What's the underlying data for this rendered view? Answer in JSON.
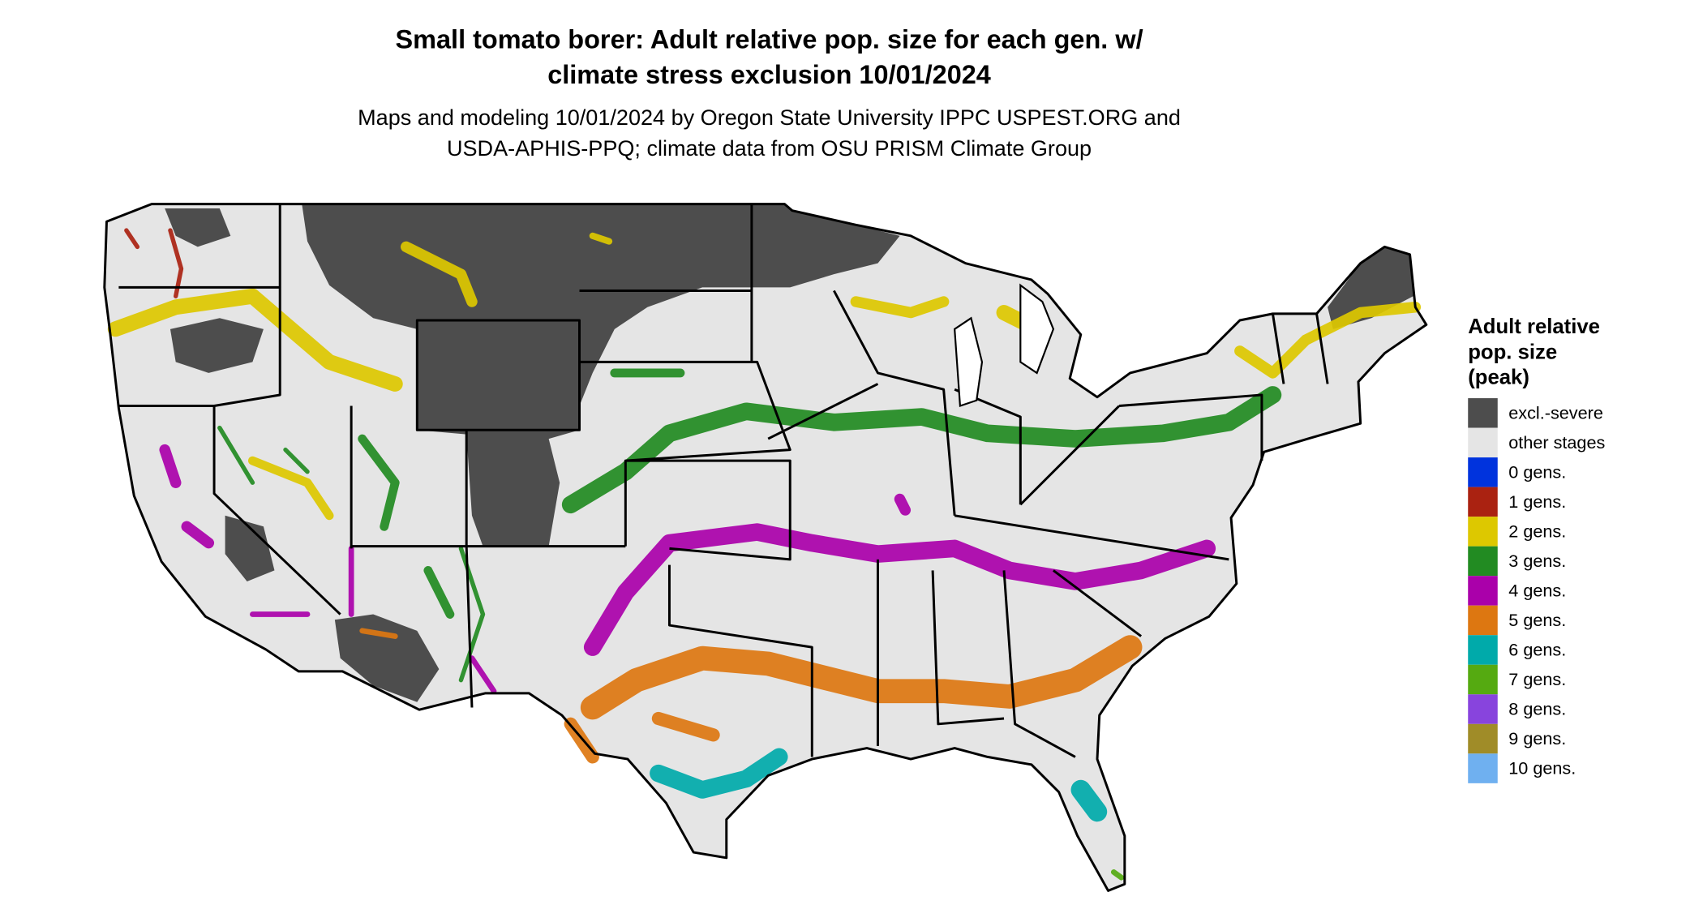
{
  "title": [
    "Small tomato borer: Adult relative pop. size for each gen. w/",
    "climate stress exclusion 10/01/2024"
  ],
  "subtitle": [
    "Maps and modeling 10/01/2024 by Oregon State University IPPC USPEST.ORG and",
    "USDA-APHIS-PPQ; climate data from OSU PRISM Climate Group"
  ],
  "legend": {
    "title": [
      "Adult relative",
      "pop. size",
      "(peak)"
    ],
    "items": [
      {
        "label": "excl.-severe",
        "color": "#4d4d4d"
      },
      {
        "label": "other stages",
        "color": "#e5e5e5"
      },
      {
        "label": "0 gens.",
        "color": "#0033dd"
      },
      {
        "label": "1 gens.",
        "color": "#aa2211"
      },
      {
        "label": "2 gens.",
        "color": "#ddc800"
      },
      {
        "label": "3 gens.",
        "color": "#228b22"
      },
      {
        "label": "4 gens.",
        "color": "#aa00aa"
      },
      {
        "label": "5 gens.",
        "color": "#dd7711"
      },
      {
        "label": "6 gens.",
        "color": "#00aaaa"
      },
      {
        "label": "7 gens.",
        "color": "#55aa11"
      },
      {
        "label": "8 gens.",
        "color": "#8844dd"
      },
      {
        "label": "9 gens.",
        "color": "#a08c28"
      },
      {
        "label": "10 gens.",
        "color": "#6fb0f0"
      }
    ]
  }
}
